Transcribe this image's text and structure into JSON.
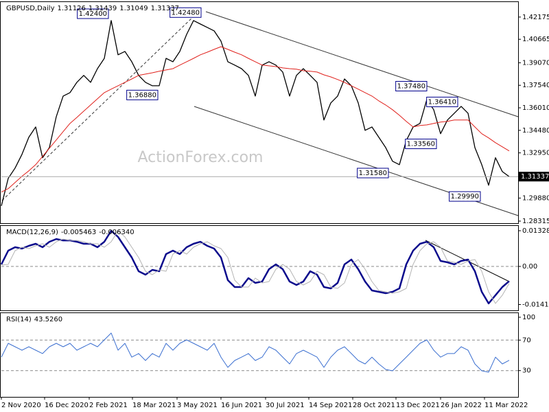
{
  "chart_data": [
    {
      "type": "line",
      "title": "GBPUSD,Daily",
      "ohlc": [
        1.31126,
        1.31439,
        1.31049,
        1.31337
      ],
      "watermark": "ActionForex.com",
      "ylim": [
        1.28315,
        1.431
      ],
      "yticks": [
        1.42175,
        {
          "value": 1.40665,
          "label": "1.40665"
        },
        {
          "value": 1.3907,
          "label": "1.39070"
        },
        {
          "value": 1.3754,
          "label": "1.37540"
        },
        {
          "value": 1.3601,
          "label": "1.36010"
        },
        {
          "value": 1.3448,
          "label": "1.34480"
        },
        {
          "value": 1.3295,
          "label": "1.32950"
        },
        {
          "value": 1.2988,
          "label": "1.29880"
        },
        1.28315
      ],
      "grid": false,
      "series": [
        {
          "name": "Close",
          "color": "#000000",
          "values": [
            1.2935,
            1.3122,
            1.3192,
            1.3285,
            1.3401,
            1.3471,
            1.3262,
            1.3331,
            1.3541,
            1.3681,
            1.3704,
            1.3774,
            1.3821,
            1.3774,
            1.3867,
            1.3937,
            1.4194,
            1.3961,
            1.3984,
            1.3914,
            1.3821,
            1.3774,
            1.3751,
            1.3751,
            1.3937,
            1.3914,
            1.3984,
            1.41,
            1.4194,
            1.417,
            1.4147,
            1.4124,
            1.4054,
            1.3914,
            1.3891,
            1.3867,
            1.3821,
            1.3681,
            1.3891,
            1.3914,
            1.3891,
            1.3844,
            1.3681,
            1.3821,
            1.3867,
            1.3821,
            1.3774,
            1.3518,
            1.3634,
            1.3681,
            1.3797,
            1.3751,
            1.3634,
            1.3448,
            1.3471,
            1.3401,
            1.3331,
            1.3238,
            1.3215,
            1.3378,
            1.3471,
            1.3495,
            1.3658,
            1.3588,
            1.3425,
            1.3518,
            1.3564,
            1.3611,
            1.3564,
            1.3331,
            1.3215,
            1.3075,
            1.3262,
            1.3168,
            1.31337
          ]
        },
        {
          "name": "MA",
          "color": "#e0201b",
          "values": [
            1.3029,
            1.3052,
            1.3094,
            1.3136,
            1.3173,
            1.3215,
            1.3271,
            1.3327,
            1.3383,
            1.3439,
            1.3495,
            1.3536,
            1.3578,
            1.362,
            1.3662,
            1.3704,
            1.3728,
            1.3751,
            1.3774,
            1.3797,
            1.3821,
            1.383,
            1.3839,
            1.3849,
            1.3858,
            1.3867,
            1.3891,
            1.3914,
            1.3937,
            1.3961,
            1.3979,
            1.3998,
            1.4016,
            1.3998,
            1.3979,
            1.3961,
            1.3937,
            1.3914,
            1.3891,
            1.3886,
            1.3881,
            1.3872,
            1.3867,
            1.3863,
            1.3853,
            1.3849,
            1.3844,
            1.3825,
            1.3811,
            1.3793,
            1.3774,
            1.3751,
            1.3728,
            1.3704,
            1.3681,
            1.3648,
            1.362,
            1.3588,
            1.355,
            1.3509,
            1.3471,
            1.3481,
            1.3485,
            1.3495,
            1.3504,
            1.3509,
            1.3518,
            1.3518,
            1.3518,
            1.3471,
            1.3425,
            1.3397,
            1.3364,
            1.3336,
            1.3308
          ]
        }
      ],
      "annotations": [
        {
          "x": 15.6,
          "value": 1.424,
          "label": "1.42400"
        },
        {
          "x": 29.1,
          "value": 1.4248,
          "label": "1.42480"
        },
        {
          "x": 22.8,
          "value": 1.3688,
          "label": "1.36880"
        },
        {
          "x": 62,
          "value": 1.3748,
          "label": "1.37480"
        },
        {
          "x": 66.5,
          "value": 1.3641,
          "label": "1.36410"
        },
        {
          "x": 63.4,
          "value": 1.3356,
          "label": "1.33560"
        },
        {
          "x": 56.4,
          "value": 1.3158,
          "label": "1.31580"
        },
        {
          "x": 69.8,
          "value": 1.2999,
          "label": "1.29990"
        }
      ]
    },
    {
      "type": "line",
      "title": "MACD(12,26,9)",
      "readout": [
        -0.005463,
        {
          "value": -0.00634,
          "label": "-0.006340"
        }
      ],
      "ylim": [
        -0.01634,
        0.01481
      ],
      "yticks": [
        0.01328,
        {
          "value": 0,
          "label": "0.00"
        },
        -0.014173
      ],
      "levels": [
        0
      ],
      "series": [
        {
          "name": "MACD",
          "color": "#0a0a8c",
          "values": [
            0.00077,
            0.00587,
            0.00714,
            0.00663,
            0.00765,
            0.00842,
            0.00714,
            0.00918,
            0.0102,
            0.00969,
            0.00969,
            0.00918,
            0.00842,
            0.00842,
            0.00714,
            0.00918,
            0.01326,
            0.01097,
            0.00714,
            0.00332,
            -0.00179,
            -0.00306,
            -0.00128,
            -0.00179,
            0.00459,
            0.00587,
            0.00459,
            0.00714,
            0.00842,
            0.00918,
            0.00765,
            0.00663,
            0.00332,
            -0.0051,
            -0.00765,
            -0.00765,
            -0.00434,
            -0.00612,
            -0.00561,
            -0.00102,
            0.00077,
            -0.00102,
            -0.00561,
            -0.00689,
            -0.00561,
            -0.00179,
            -0.00306,
            -0.00765,
            -0.00816,
            -0.00612,
            0.00077,
            0.00255,
            -0.00102,
            -0.00561,
            -0.00893,
            -0.00944,
            -0.00995,
            -0.00944,
            -0.00816,
            0.00077,
            0.00587,
            0.00842,
            0.00918,
            0.00714,
            0.00204,
            0.00153,
            0.00077,
            0.00204,
            0.00255,
            -0.00179,
            -0.00944,
            -0.01377,
            -0.01071,
            -0.00765,
            -0.005463
          ]
        },
        {
          "name": "Signal",
          "color": "#b4b4b4",
          "values": [
            0.0005,
            0.00077,
            0.00587,
            0.00714,
            0.00663,
            0.00765,
            0.00842,
            0.00714,
            0.00918,
            0.0102,
            0.00969,
            0.00969,
            0.00918,
            0.00842,
            0.00842,
            0.00714,
            0.00918,
            0.01326,
            0.01097,
            0.00714,
            0.00332,
            -0.00179,
            -0.00306,
            -0.00128,
            -0.00179,
            0.00459,
            0.00587,
            0.00459,
            0.00714,
            0.00842,
            0.00918,
            0.00765,
            0.00663,
            0.00332,
            -0.0051,
            -0.00765,
            -0.00765,
            -0.00434,
            -0.00612,
            -0.00561,
            -0.00102,
            0.00077,
            -0.00102,
            -0.00561,
            -0.00689,
            -0.00561,
            -0.00179,
            -0.00306,
            -0.00765,
            -0.00816,
            -0.00612,
            0.00077,
            0.00255,
            -0.00102,
            -0.00561,
            -0.00893,
            -0.00944,
            -0.00995,
            -0.00944,
            -0.00816,
            0.00077,
            0.00587,
            0.00842,
            0.00918,
            0.00714,
            0.00204,
            0.00153,
            0.00077,
            0.00204,
            0.00255,
            -0.00179,
            -0.00944,
            -0.01377,
            -0.01071,
            -0.00634
          ]
        }
      ]
    },
    {
      "type": "line",
      "title": "RSI(14)",
      "readout": [
        {
          "value": 43.526,
          "label": "43.5260"
        }
      ],
      "ylim": [
        0,
        100
      ],
      "yticks": [
        100,
        70,
        30
      ],
      "levels": [
        70,
        30
      ],
      "xlim": [
        0,
        75.3
      ],
      "xticks": [
        {
          "value": 0,
          "label": "2 Nov 2020"
        },
        {
          "value": 6.3,
          "label": "16 Dec 2020"
        },
        {
          "value": 12.8,
          "label": "2 Feb 2021"
        },
        {
          "value": 19.1,
          "label": "18 Mar 2021"
        },
        {
          "value": 25.6,
          "label": "3 May 2021"
        },
        {
          "value": 32,
          "label": "16 Jun 2021"
        },
        {
          "value": 38.5,
          "label": "30 Jul 2021"
        },
        {
          "value": 44.8,
          "label": "14 Sep 2021"
        },
        {
          "value": 51.2,
          "label": "28 Oct 2021"
        },
        {
          "value": 57.5,
          "label": "13 Dec 2021"
        },
        {
          "value": 64,
          "label": "26 Jan 2022"
        },
        {
          "value": 70.4,
          "label": "11 Mar 2022"
        }
      ],
      "series": [
        {
          "name": "RSI",
          "color": "#3b6fd0",
          "values": [
            47.7,
            65.8,
            61.3,
            56.8,
            61.3,
            56.8,
            52.3,
            61.3,
            65.8,
            61.3,
            65.8,
            56.8,
            61.3,
            65.8,
            61.3,
            70.3,
            79.3,
            56.8,
            65.8,
            47.7,
            52.3,
            43.2,
            52.3,
            47.7,
            65.8,
            56.8,
            65.8,
            70.3,
            65.8,
            61.3,
            56.8,
            65.8,
            47.7,
            34.2,
            43.2,
            47.7,
            52.3,
            43.2,
            47.7,
            61.3,
            56.8,
            47.7,
            38.7,
            52.3,
            56.8,
            52.3,
            47.7,
            34.2,
            47.7,
            56.8,
            61.3,
            52.3,
            43.2,
            38.7,
            47.7,
            38.7,
            31.5,
            29.7,
            38.7,
            47.7,
            56.8,
            65.8,
            70.3,
            56.8,
            47.7,
            52.3,
            52.3,
            61.3,
            56.8,
            38.7,
            29.7,
            27.9,
            47.7,
            38.7,
            43.526
          ]
        }
      ]
    }
  ]
}
